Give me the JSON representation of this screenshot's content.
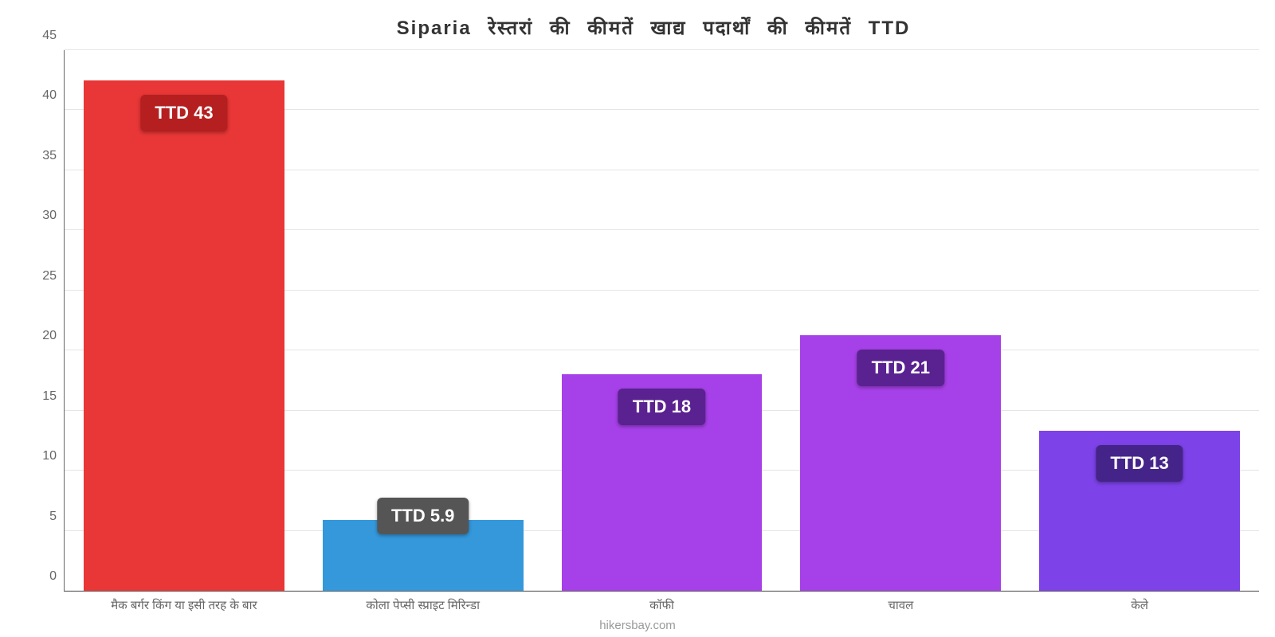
{
  "chart": {
    "type": "bar",
    "title": "Siparia रेस्तरां की कीमतें खाद्य पदार्थों की कीमतें TTD",
    "title_fontsize": 24,
    "title_color": "#333333",
    "background_color": "#ffffff",
    "grid_color": "#e5e5e5",
    "axis_color": "#666666",
    "ylim": [
      0,
      45
    ],
    "ytick_step": 5,
    "yticks": [
      0,
      5,
      10,
      15,
      20,
      25,
      30,
      35,
      40,
      45
    ],
    "tick_fontsize": 16,
    "tick_color": "#666666",
    "x_label_fontsize": 15,
    "x_label_color": "#666666",
    "bar_width": 0.84,
    "categories": [
      "मैक बर्गर किंग या इसी तरह के बार",
      "कोला पेप्सी स्प्राइट मिरिन्डा",
      "कॉफी",
      "चावल",
      "केले"
    ],
    "values": [
      42.5,
      5.9,
      18,
      21.3,
      13.3
    ],
    "value_labels": [
      "TTD 43",
      "TTD 5.9",
      "TTD 18",
      "TTD 21",
      "TTD 13"
    ],
    "bar_colors": [
      "#e93636",
      "#3498db",
      "#a640e8",
      "#a640e8",
      "#7d42e8"
    ],
    "badge_colors": [
      "#b51f1f",
      "#555555",
      "#5a2290",
      "#5a2290",
      "#45248a"
    ],
    "badge_fontsize": 22,
    "badge_text_color": "#ffffff",
    "attribution": "hikersbay.com",
    "attribution_color": "#999999",
    "attribution_fontsize": 15
  }
}
